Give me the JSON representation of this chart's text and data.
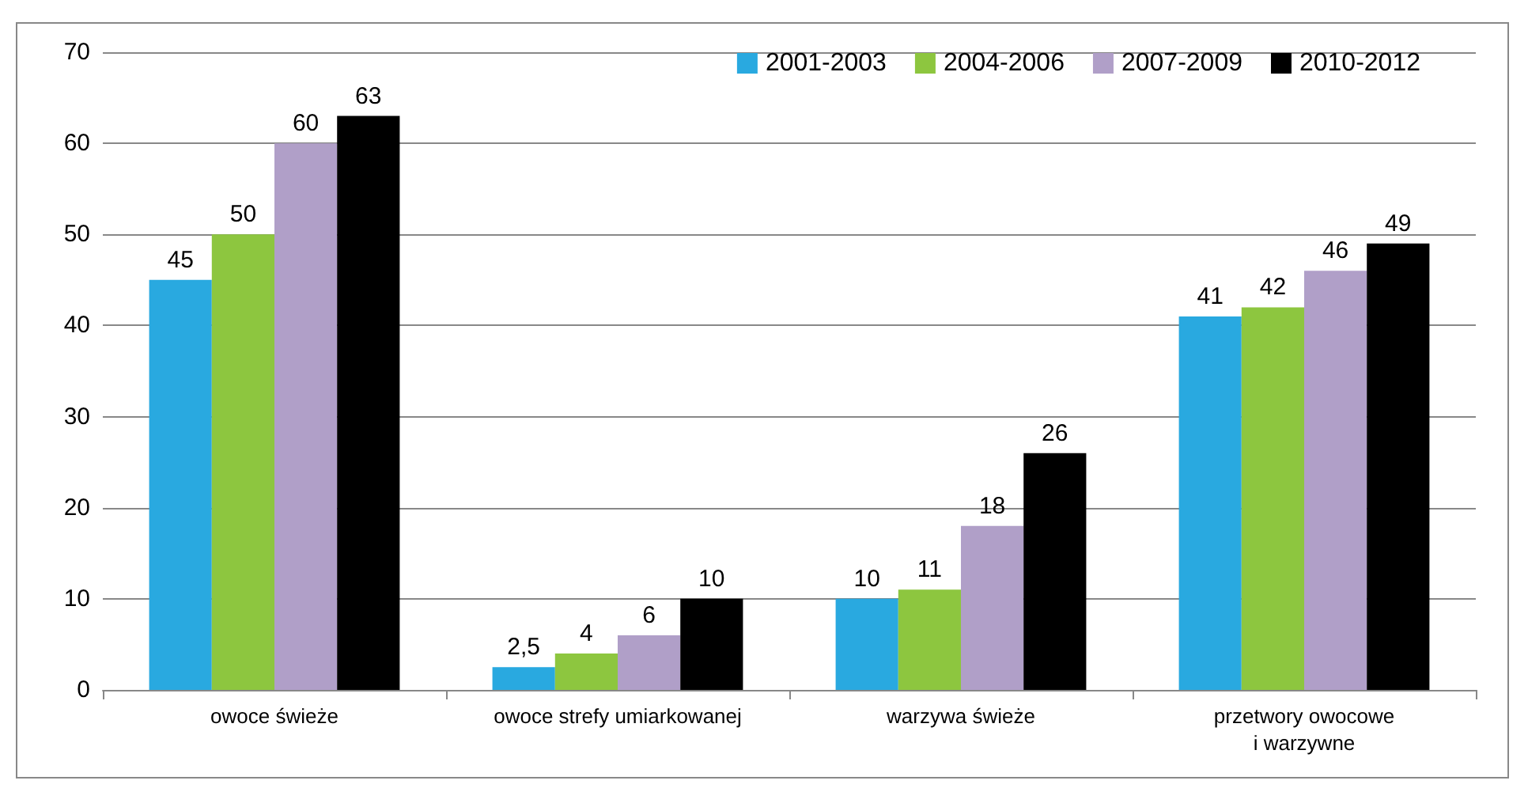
{
  "chart_data": {
    "type": "bar",
    "categories": [
      "owoce świeże",
      "owoce strefy umiarkowanej",
      "warzywa świeże",
      "przetwory owocowe\ni warzywne"
    ],
    "series": [
      {
        "name": "2001-2003",
        "color": "#29a9e0",
        "values": [
          45,
          2.5,
          10,
          41
        ],
        "value_labels": [
          "45",
          "2,5",
          "10",
          "41"
        ]
      },
      {
        "name": "2004-2006",
        "color": "#8dc63f",
        "values": [
          50,
          4,
          11,
          42
        ],
        "value_labels": [
          "50",
          "4",
          "11",
          "42"
        ]
      },
      {
        "name": "2007-2009",
        "color": "#b09fc8",
        "values": [
          60,
          6,
          18,
          46
        ],
        "value_labels": [
          "60",
          "6",
          "18",
          "46"
        ]
      },
      {
        "name": "2010-2012",
        "color": "#000000",
        "values": [
          63,
          10,
          26,
          49
        ],
        "value_labels": [
          "63",
          "10",
          "26",
          "49"
        ]
      }
    ],
    "ylim": [
      0,
      70
    ],
    "yticks": [
      0,
      10,
      20,
      30,
      40,
      50,
      60,
      70
    ],
    "grid": "y",
    "legend": "top right"
  }
}
